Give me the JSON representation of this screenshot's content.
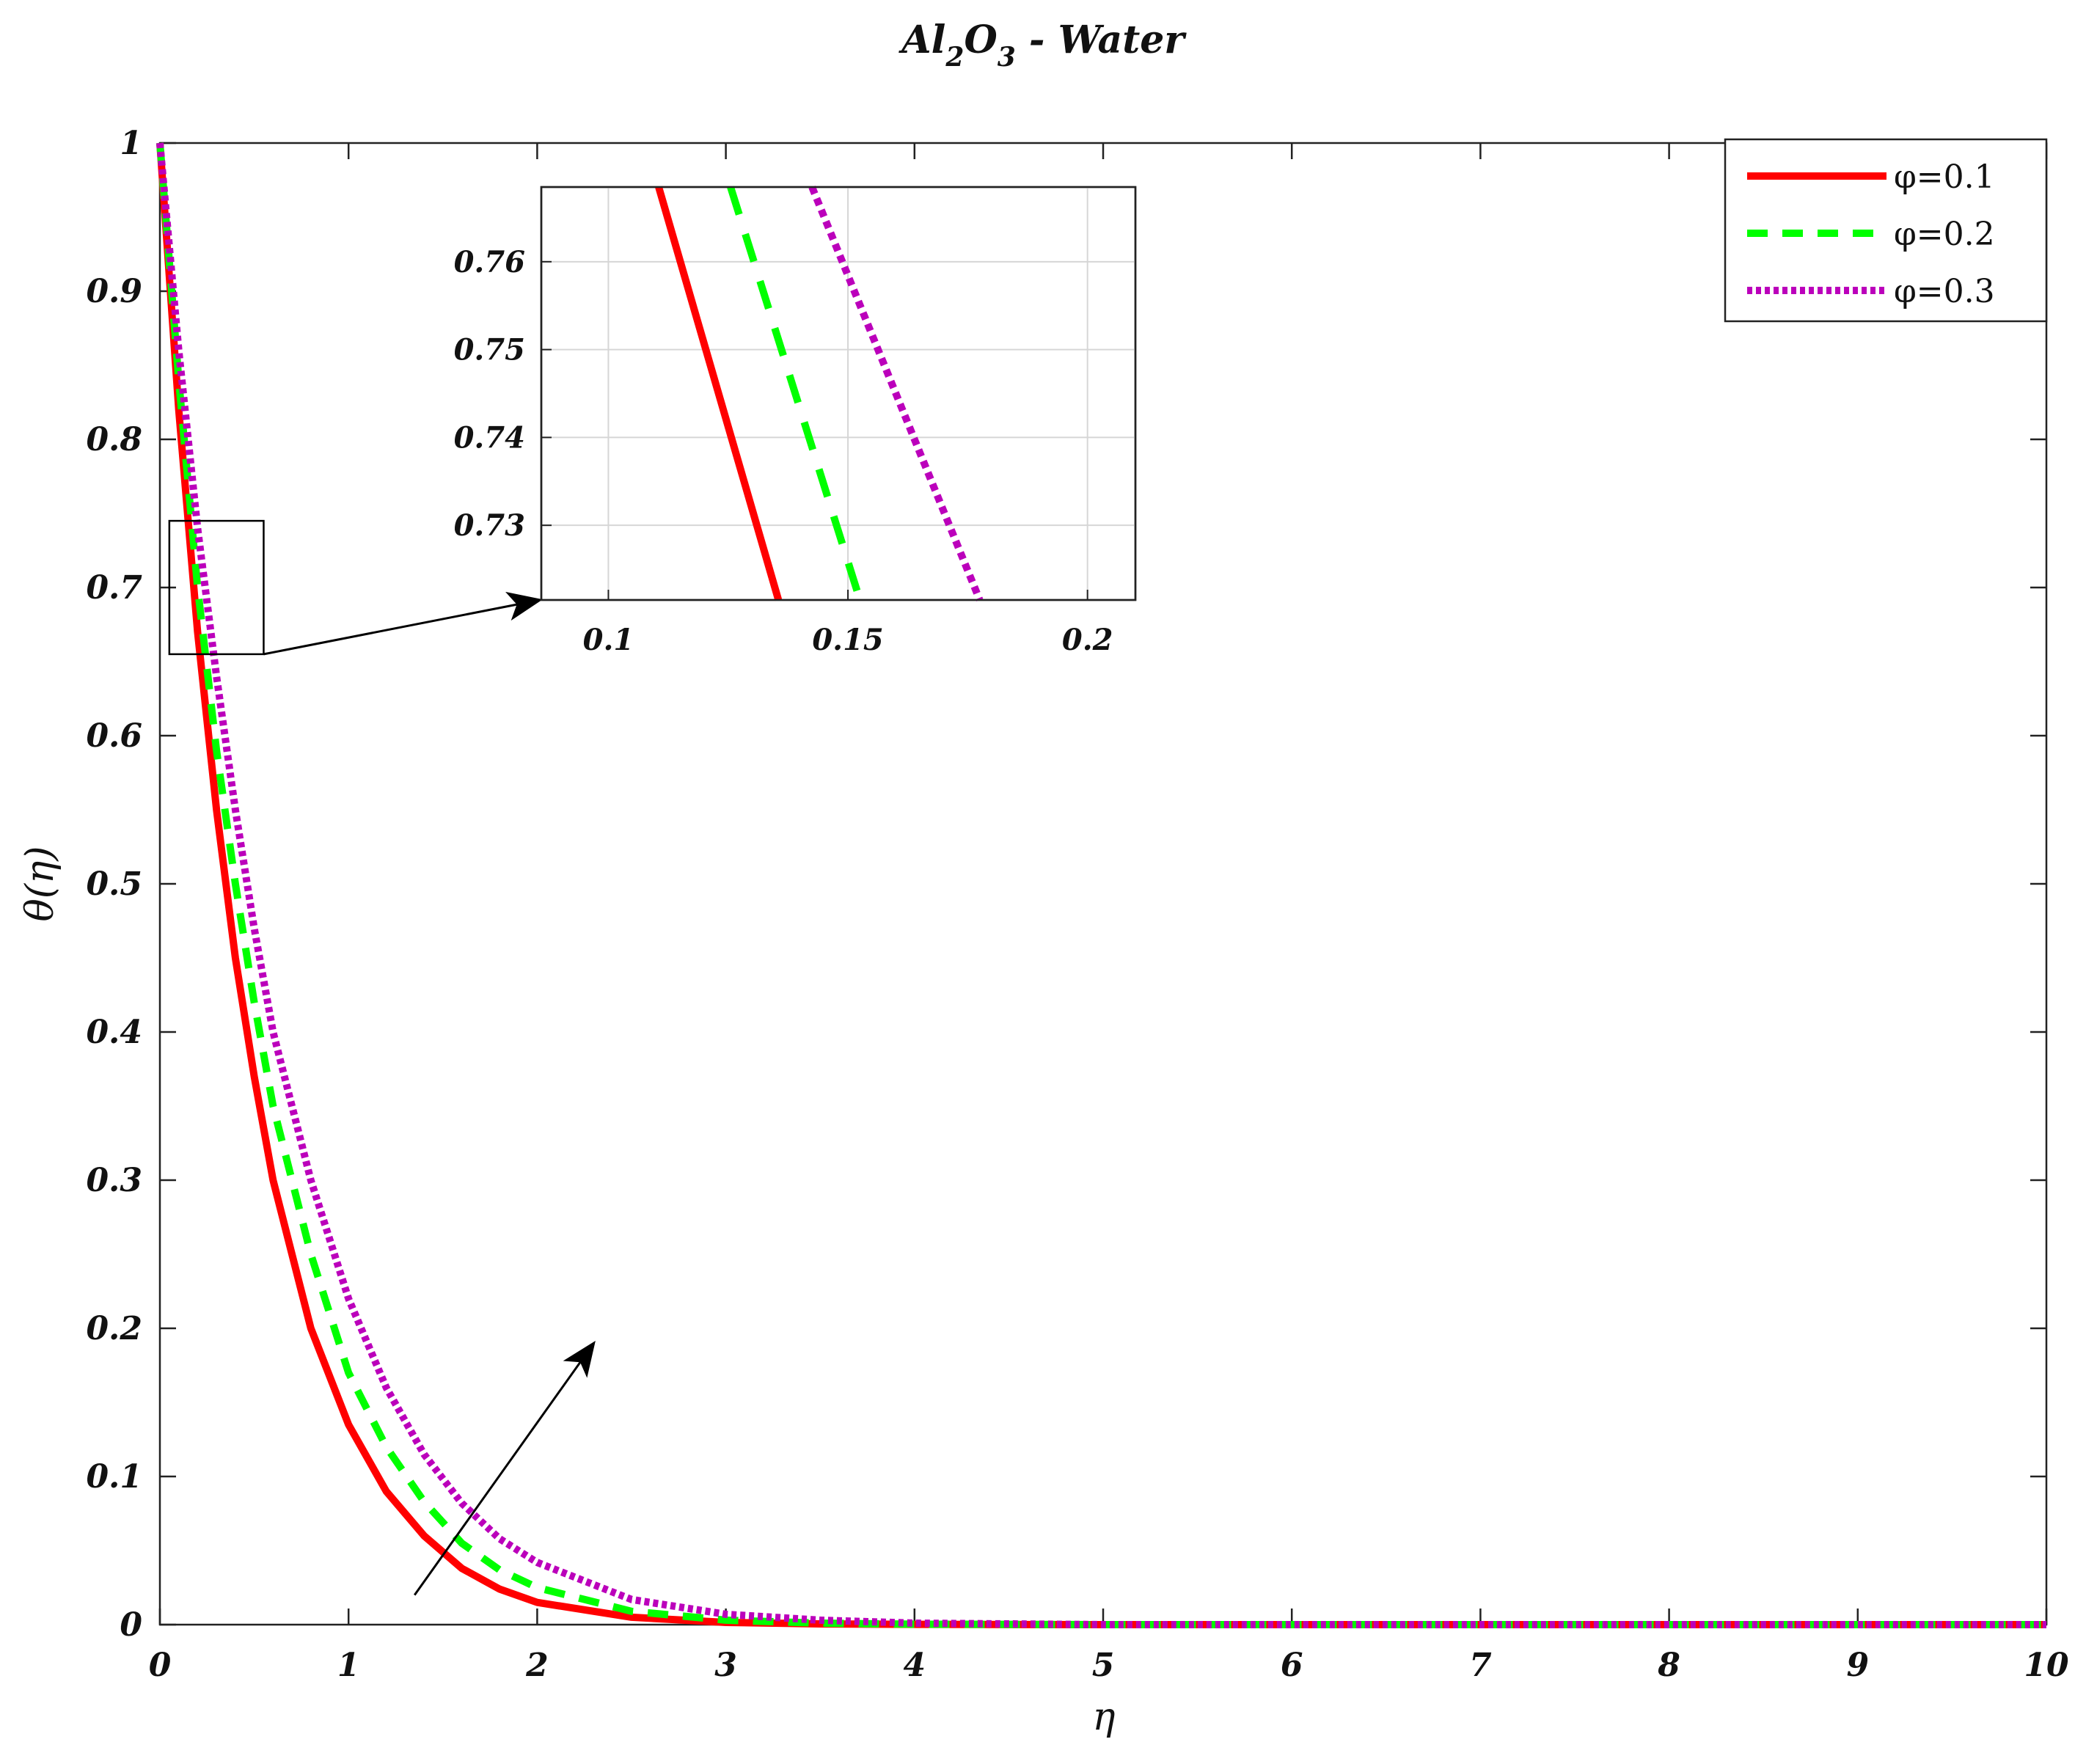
{
  "chart_data": {
    "type": "line",
    "title": {
      "al": "Al",
      "sub2": "2",
      "o": "O",
      "sub3": "3",
      "rest": " - Water"
    },
    "xlabel": "η",
    "ylabel": "θ(η)",
    "xlim": [
      0,
      10
    ],
    "ylim": [
      0,
      1
    ],
    "xticks": [
      "0",
      "1",
      "2",
      "3",
      "4",
      "5",
      "6",
      "7",
      "8",
      "9",
      "10"
    ],
    "yticks": [
      "0",
      "0.1",
      "0.2",
      "0.3",
      "0.4",
      "0.5",
      "0.6",
      "0.7",
      "0.8",
      "0.9",
      "1"
    ],
    "grid": false,
    "legend_position": "top-right",
    "series": [
      {
        "name": "φ=0.1",
        "color": "#ff0000",
        "style": "solid",
        "x": [
          0,
          0.1,
          0.2,
          0.3,
          0.4,
          0.5,
          0.6,
          0.8,
          1.0,
          1.2,
          1.4,
          1.6,
          1.8,
          2.0,
          2.5,
          3.0,
          3.5,
          4.0,
          5.0,
          6.0,
          7.0,
          8.0,
          9.0,
          10.0
        ],
        "y": [
          1.0,
          0.82,
          0.67,
          0.55,
          0.45,
          0.37,
          0.3,
          0.2,
          0.135,
          0.09,
          0.06,
          0.038,
          0.024,
          0.015,
          0.005,
          0.0015,
          0.0005,
          0.0002,
          0,
          0,
          0,
          0,
          0,
          0
        ]
      },
      {
        "name": "φ=0.2",
        "color": "#00ff00",
        "style": "dashed",
        "x": [
          0,
          0.1,
          0.2,
          0.3,
          0.4,
          0.5,
          0.6,
          0.8,
          1.0,
          1.2,
          1.4,
          1.6,
          1.8,
          2.0,
          2.5,
          3.0,
          3.5,
          4.0,
          5.0,
          6.0,
          7.0,
          8.0,
          9.0,
          10.0
        ],
        "y": [
          1.0,
          0.84,
          0.7,
          0.59,
          0.5,
          0.42,
          0.35,
          0.25,
          0.17,
          0.12,
          0.083,
          0.055,
          0.037,
          0.025,
          0.009,
          0.003,
          0.001,
          0.0003,
          0,
          0,
          0,
          0,
          0,
          0
        ]
      },
      {
        "name": "φ=0.3",
        "color": "#bb00bb",
        "style": "dotted",
        "x": [
          0,
          0.1,
          0.2,
          0.3,
          0.4,
          0.5,
          0.6,
          0.8,
          1.0,
          1.2,
          1.4,
          1.6,
          1.8,
          2.0,
          2.5,
          3.0,
          3.5,
          4.0,
          5.0,
          6.0,
          7.0,
          8.0,
          9.0,
          10.0
        ],
        "y": [
          1.0,
          0.86,
          0.74,
          0.64,
          0.55,
          0.47,
          0.4,
          0.3,
          0.22,
          0.16,
          0.115,
          0.082,
          0.058,
          0.042,
          0.017,
          0.007,
          0.003,
          0.001,
          0,
          0,
          0,
          0,
          0,
          0
        ]
      }
    ],
    "inset": {
      "xlim": [
        0.086,
        0.21
      ],
      "ylim": [
        0.7215,
        0.7685
      ],
      "xticks": [
        "0.1",
        "0.15",
        "0.2"
      ],
      "yticks": [
        "0.73",
        "0.74",
        "0.75",
        "0.76"
      ],
      "grid": true,
      "series": [
        {
          "color": "#ff0000",
          "style": "solid",
          "x": [
            0.1105,
            0.1355
          ],
          "y": [
            0.7685,
            0.7215
          ]
        },
        {
          "color": "#00ff00",
          "style": "dashed",
          "x": [
            0.1255,
            0.1525
          ],
          "y": [
            0.7685,
            0.7215
          ]
        },
        {
          "color": "#bb00bb",
          "style": "dotted",
          "x": [
            0.1425,
            0.1775
          ],
          "y": [
            0.7685,
            0.7215
          ]
        }
      ]
    },
    "zoom_region": {
      "xlim": [
        0.05,
        0.55
      ],
      "ylim": [
        0.655,
        0.745
      ]
    },
    "trend_arrow": {
      "from": [
        1.35,
        0.02
      ],
      "to": [
        2.3,
        0.19
      ]
    }
  }
}
